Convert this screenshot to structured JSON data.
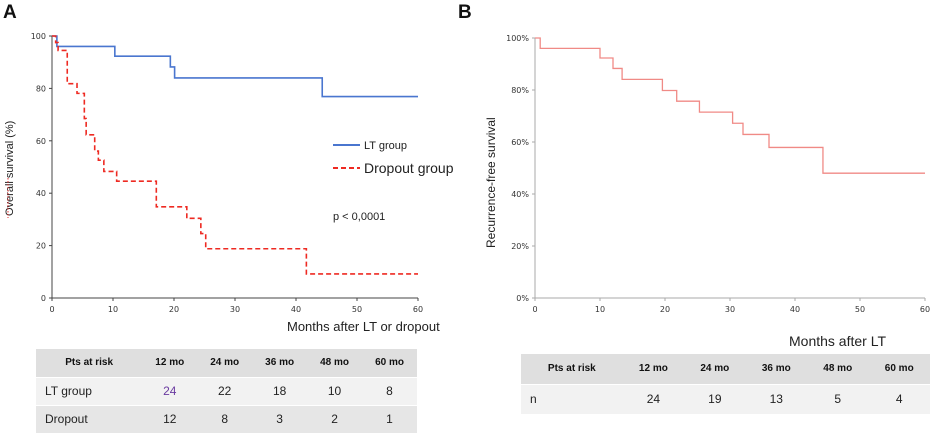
{
  "panelA": {
    "letter": "A",
    "ylabel": "Overall survival (%)",
    "xlabel": "Months after LT or dropout",
    "legend": [
      {
        "label": "LT group",
        "color": "#4a76cf",
        "dash": "solid"
      },
      {
        "label": "Dropout group",
        "color": "#ee2a22",
        "dash": "dashed"
      }
    ],
    "pvalue": "p < 0,0001"
  },
  "panelB": {
    "letter": "B",
    "ylabel": "Recurrence-free survival",
    "xlabel": "Months after LT"
  },
  "chart_data": [
    {
      "type": "line",
      "title": "",
      "xlabel": "Months after LT or dropout",
      "ylabel": "Overall survival (%)",
      "xlim": [
        0,
        60
      ],
      "ylim": [
        0,
        100
      ],
      "xticks": [
        0,
        10,
        20,
        30,
        40,
        50,
        60
      ],
      "yticks": [
        0,
        20,
        40,
        60,
        80,
        100
      ],
      "ytick_labels": [
        "0",
        "20",
        "40",
        "60",
        "80",
        "100"
      ],
      "series": [
        {
          "name": "LT group",
          "color": "#4a76cf",
          "step": true,
          "x": [
            0,
            0.8,
            10.3,
            19.4,
            20.1,
            44.3,
            60
          ],
          "y": [
            100,
            96,
            92.3,
            88.2,
            84,
            76.9,
            76.9
          ]
        },
        {
          "name": "Dropout group",
          "color": "#ee2a22",
          "step": true,
          "x": [
            0,
            0.6,
            1,
            2.5,
            4.1,
            5.3,
            5.6,
            7,
            7.6,
            8.5,
            10.6,
            17.1,
            22.1,
            24.4,
            25.2,
            41.7,
            60
          ],
          "y": [
            100,
            97.5,
            94.5,
            81.8,
            78.1,
            68.5,
            62.3,
            56.1,
            52.6,
            48.3,
            44.6,
            34.8,
            30.4,
            24.6,
            18.8,
            9.2,
            9.2
          ]
        }
      ],
      "annotations": [
        "p < 0,0001"
      ],
      "risk_table": {
        "header": [
          "Pts at risk",
          "12 mo",
          "24 mo",
          "36 mo",
          "48 mo",
          "60 mo"
        ],
        "rows": [
          {
            "label": "LT group",
            "values": [
              "24",
              "22",
              "18",
              "10",
              "8"
            ]
          },
          {
            "label": "Dropout",
            "values": [
              "12",
              "8",
              "3",
              "2",
              "1"
            ]
          }
        ]
      }
    },
    {
      "type": "line",
      "title": "",
      "xlabel": "Months after LT",
      "ylabel": "Recurrence-free survival",
      "xlim": [
        0,
        60
      ],
      "ylim": [
        0,
        100
      ],
      "xticks": [
        0,
        10,
        20,
        30,
        40,
        50,
        60
      ],
      "yticks": [
        0,
        20,
        40,
        60,
        80,
        100
      ],
      "ytick_labels": [
        "0%",
        "20%",
        "40%",
        "60%",
        "80%",
        "100%"
      ],
      "series": [
        {
          "name": "Recurrence-free survival",
          "color": "#f08a86",
          "step": true,
          "x": [
            0,
            0.8,
            10,
            12,
            13.4,
            14.6,
            19.6,
            21.8,
            25.3,
            30.4,
            32,
            36,
            44.3,
            60
          ],
          "y": [
            100,
            96,
            92.3,
            88.3,
            84.1,
            84.1,
            79.8,
            75.7,
            71.5,
            67.2,
            62.9,
            57.9,
            48,
            48
          ]
        }
      ],
      "risk_table": {
        "header": [
          "Pts at risk",
          "12 mo",
          "24 mo",
          "36 mo",
          "48 mo",
          "60 mo"
        ],
        "rows": [
          {
            "label": "n",
            "values": [
              "24",
              "19",
              "13",
              "5",
              "4"
            ]
          }
        ]
      }
    }
  ]
}
